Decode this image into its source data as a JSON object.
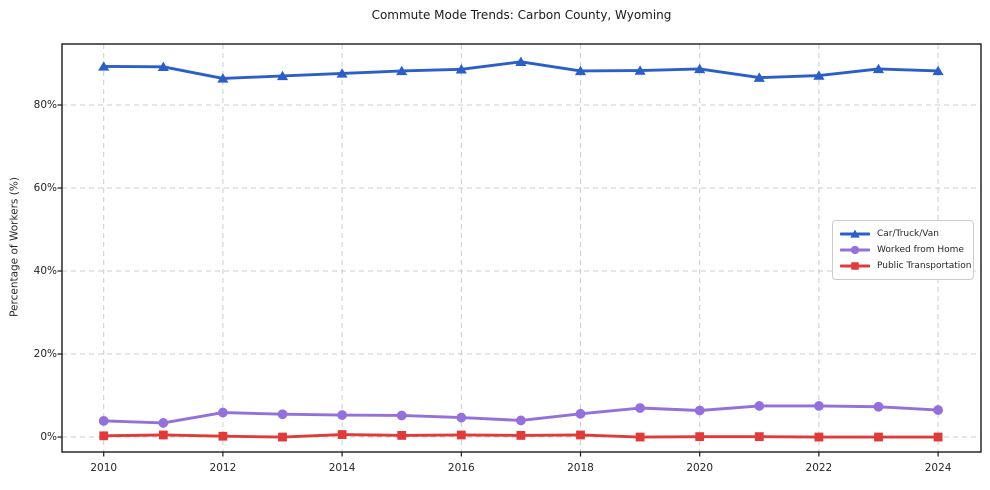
{
  "chart_data": {
    "type": "line",
    "title": "Commute Mode Trends: Carbon County, Wyoming",
    "xlabel": "",
    "ylabel": "Percentage of Workers (%)",
    "x": [
      2010,
      2011,
      2012,
      2013,
      2014,
      2015,
      2016,
      2017,
      2018,
      2019,
      2020,
      2021,
      2022,
      2023,
      2024
    ],
    "x_grid": [
      2010,
      2012,
      2014,
      2016,
      2018,
      2020,
      2022,
      2024
    ],
    "x_tick_labels": [
      "2010",
      "2012",
      "2014",
      "2016",
      "2018",
      "2020",
      "2022",
      "2024"
    ],
    "y_ticks": [
      0,
      20,
      40,
      60,
      80
    ],
    "y_tick_labels": [
      "0%",
      "20%",
      "40%",
      "60%",
      "80%"
    ],
    "xlim": [
      2009.3,
      2024.72
    ],
    "ylim": [
      -3.6,
      94.7
    ],
    "grid": true,
    "grid_style": "dashed",
    "grid_color": "#cccccc",
    "spine_color": "#1a1a1a",
    "legend_position": "center-right",
    "series": [
      {
        "name": "Car/Truck/Van",
        "color": "#2b5fc7",
        "marker": "triangle",
        "values": [
          89.3,
          89.2,
          86.4,
          87.0,
          87.6,
          88.2,
          88.6,
          90.4,
          88.2,
          88.3,
          88.7,
          86.6,
          87.1,
          88.7,
          88.2
        ]
      },
      {
        "name": "Worked from Home",
        "color": "#9370db",
        "marker": "circle",
        "values": [
          3.9,
          3.4,
          5.9,
          5.5,
          5.3,
          5.2,
          4.7,
          4.0,
          5.6,
          7.0,
          6.4,
          7.5,
          7.5,
          7.3,
          6.5
        ]
      },
      {
        "name": "Public Transportation",
        "color": "#e03b3b",
        "marker": "square",
        "values": [
          0.3,
          0.5,
          0.2,
          0.0,
          0.6,
          0.4,
          0.5,
          0.4,
          0.5,
          0.0,
          0.1,
          0.1,
          0.0,
          0.0,
          0.0
        ]
      }
    ]
  }
}
